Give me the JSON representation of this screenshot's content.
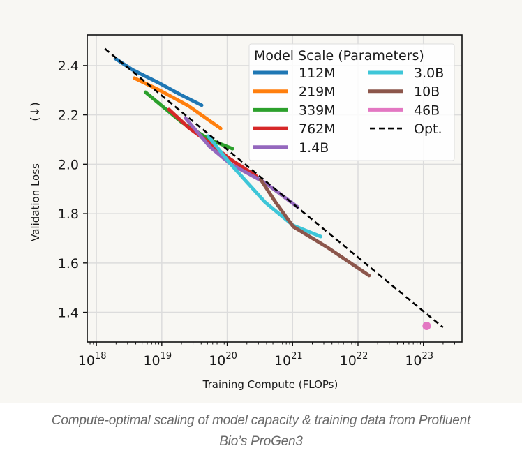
{
  "chart_data": {
    "type": "line",
    "title": "",
    "xlabel": "Training Compute (FLOPs)",
    "ylabel": "Validation Loss",
    "ylabel_suffix": "(↓)",
    "xscale": "log",
    "xlim_log10": [
      17.86,
      23.59
    ],
    "ylim": [
      1.28,
      2.524
    ],
    "grid": true,
    "x_ticks": [
      {
        "exp": 18,
        "base": "10",
        "sup": "18"
      },
      {
        "exp": 19,
        "base": "10",
        "sup": "19"
      },
      {
        "exp": 20,
        "base": "10",
        "sup": "20"
      },
      {
        "exp": 21,
        "base": "10",
        "sup": "21"
      },
      {
        "exp": 22,
        "base": "10",
        "sup": "22"
      },
      {
        "exp": 23,
        "base": "10",
        "sup": "23"
      }
    ],
    "y_ticks": [
      {
        "value": 1.4,
        "label": "1.4"
      },
      {
        "value": 1.6,
        "label": "1.6"
      },
      {
        "value": 1.8,
        "label": "1.8"
      },
      {
        "value": 2.0,
        "label": "2.0"
      },
      {
        "value": 2.2,
        "label": "2.2"
      },
      {
        "value": 2.4,
        "label": "2.4"
      }
    ],
    "legend": {
      "title": "Model Scale (Parameters)",
      "placement": "top-right",
      "columns": 2
    },
    "series": [
      {
        "name": "112M",
        "color": "#1f77b4",
        "style": "solid",
        "log10_x": [
          18.29,
          18.55,
          18.98,
          19.3,
          19.61
        ],
        "y": [
          2.428,
          2.383,
          2.326,
          2.28,
          2.239
        ]
      },
      {
        "name": "219M",
        "color": "#ff7f0e",
        "style": "solid",
        "log10_x": [
          18.58,
          18.98,
          19.41,
          19.9
        ],
        "y": [
          2.349,
          2.298,
          2.236,
          2.145
        ]
      },
      {
        "name": "339M",
        "color": "#2ca02c",
        "style": "solid",
        "log10_x": [
          18.75,
          19.3,
          19.73,
          20.08
        ],
        "y": [
          2.292,
          2.171,
          2.1,
          2.063
        ]
      },
      {
        "name": "762M",
        "color": "#d62728",
        "style": "solid",
        "log10_x": [
          19.11,
          19.41,
          19.73,
          20.05,
          20.44
        ],
        "y": [
          2.222,
          2.148,
          2.086,
          2.02,
          1.953
        ]
      },
      {
        "name": "1.4B",
        "color": "#9467bd",
        "style": "solid",
        "log10_x": [
          19.36,
          19.73,
          20.05,
          20.58,
          21.08
        ],
        "y": [
          2.188,
          2.072,
          2.001,
          1.925,
          1.826
        ]
      },
      {
        "name": "3.0B",
        "color": "#3ec6d8",
        "style": "solid",
        "log10_x": [
          19.71,
          20.05,
          20.58,
          21.01,
          21.43
        ],
        "y": [
          2.114,
          2.001,
          1.846,
          1.752,
          1.707
        ]
      },
      {
        "name": "10B",
        "color": "#8c564b",
        "style": "solid",
        "log10_x": [
          20.51,
          20.74,
          21.01,
          21.54,
          22.17
        ],
        "y": [
          1.939,
          1.846,
          1.747,
          1.662,
          1.549
        ]
      },
      {
        "name": "46B",
        "color": "#e377c2",
        "style": "point",
        "log10_x": [
          23.05
        ],
        "y": [
          1.345
        ]
      },
      {
        "name": "Opt.",
        "color": "#000000",
        "style": "dashed",
        "log10_x": [
          18.13,
          23.3
        ],
        "y": [
          2.468,
          1.339
        ]
      }
    ]
  },
  "caption": {
    "line1": "Compute-optimal scaling of model capacity & training data from Profluent",
    "line2": "Bio’s ProGen3"
  }
}
